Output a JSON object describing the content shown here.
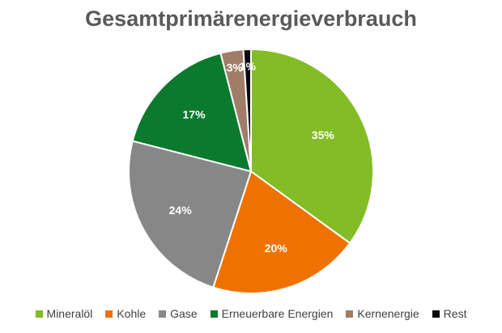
{
  "chart_data": {
    "type": "pie",
    "title": "Gesamtprimärenergieverbrauch",
    "legend_position": "bottom",
    "slices": [
      {
        "label": "Mineralöl",
        "value": 35,
        "display": "35%",
        "color": "#82bc26"
      },
      {
        "label": "Kohle",
        "value": 20,
        "display": "20%",
        "color": "#ef7200"
      },
      {
        "label": "Gase",
        "value": 24,
        "display": "24%",
        "color": "#878787"
      },
      {
        "label": "Erneuerbare Energien",
        "value": 17,
        "display": "17%",
        "color": "#0b7a2e"
      },
      {
        "label": "Kernenergie",
        "value": 3,
        "display": "3%",
        "color": "#a07d68"
      },
      {
        "label": "Rest",
        "value": 1,
        "display": "1%",
        "color": "#0b0b0b"
      }
    ]
  }
}
